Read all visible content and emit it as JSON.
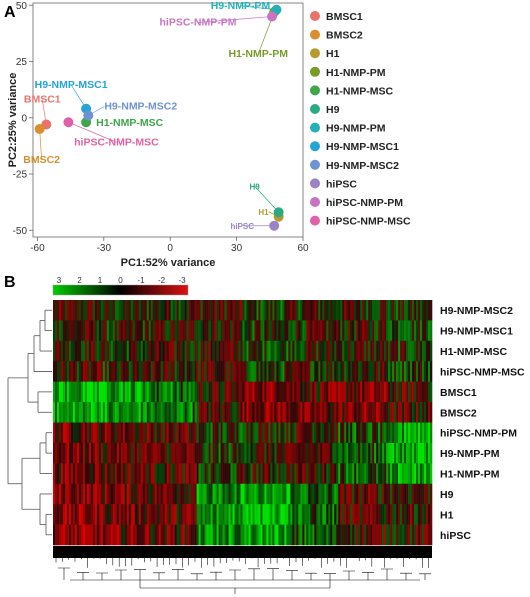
{
  "panel_a_letter": "A",
  "panel_b_letter": "B",
  "colors": {
    "BMSC1": "#e8736b",
    "BMSC2": "#d98e2f",
    "H1": "#b59a2e",
    "H1-NMP-PM": "#7a9b2a",
    "H1-NMP-MSC": "#3fa64a",
    "H9": "#2aaa83",
    "H9-NMP-PM": "#24b0b5",
    "H9-NMP-MSC1": "#25a4d8",
    "H9-NMP-MSC2": "#6e93d3",
    "hiPSC": "#9c83c8",
    "hiPSC-NMP-PM": "#c774c2",
    "hiPSC-NMP-MSC": "#e061a6"
  },
  "chart_data": [
    {
      "type": "scatter",
      "title": "",
      "xlabel": "PC1:52% variance",
      "ylabel": "PC2:25% variance",
      "xlim": [
        -62,
        60
      ],
      "ylim": [
        -53,
        51
      ],
      "xticks": [
        -60,
        -30,
        0,
        30,
        60
      ],
      "yticks": [
        -50,
        -25,
        0,
        25,
        50
      ],
      "grid": false,
      "legend_position": "right",
      "points": [
        {
          "name": "BMSC1",
          "x": -56,
          "y": -3,
          "label": "BMSC1"
        },
        {
          "name": "BMSC2",
          "x": -59,
          "y": -5,
          "label": "BMSC2"
        },
        {
          "name": "H1",
          "x": 49,
          "y": -44,
          "label": "H1"
        },
        {
          "name": "H1-NMP-PM",
          "x": 47,
          "y": 47,
          "label": "H1-NMP-PM"
        },
        {
          "name": "H1-NMP-MSC",
          "x": -38,
          "y": -2,
          "label": "H1-NMP-MSC"
        },
        {
          "name": "H9",
          "x": 49,
          "y": -42,
          "label": "H9"
        },
        {
          "name": "H9-NMP-PM",
          "x": 48,
          "y": 48,
          "label": "H9-NMP-PM"
        },
        {
          "name": "H9-NMP-MSC1",
          "x": -38,
          "y": 4,
          "label": "H9-NMP-MSC1"
        },
        {
          "name": "H9-NMP-MSC2",
          "x": -37,
          "y": 1,
          "label": "H9-NMP-MSC2"
        },
        {
          "name": "hiPSC",
          "x": 47,
          "y": -48,
          "label": "hiPSC"
        },
        {
          "name": "hiPSC-NMP-PM",
          "x": 46,
          "y": 45,
          "label": "hiPSC-NMP-PM"
        },
        {
          "name": "hiPSC-NMP-MSC",
          "x": -46,
          "y": -2,
          "label": "hiPSC-NMP-MSC"
        }
      ],
      "legend": [
        "BMSC1",
        "BMSC2",
        "H1",
        "H1-NMP-PM",
        "H1-NMP-MSC",
        "H9",
        "H9-NMP-PM",
        "H9-NMP-MSC1",
        "H9-NMP-MSC2",
        "hiPSC",
        "hiPSC-NMP-PM",
        "hiPSC-NMP-MSC"
      ]
    },
    {
      "type": "heatmap",
      "title": "",
      "color_scale_ticks": [
        "3",
        "2",
        "1",
        "0",
        "-1",
        "-2",
        "-3"
      ],
      "color_low": "#00cc00",
      "color_mid": "#000000",
      "color_high": "#dd1111",
      "row_labels": [
        "H9-NMP-MSC2",
        "H9-NMP-MSC1",
        "H1-NMP-MSC",
        "hiPSC-NMP-MSC",
        "BMSC1",
        "BMSC2",
        "hiPSC-NMP-PM",
        "H9-NMP-PM",
        "H1-NMP-PM",
        "H9",
        "H1",
        "hiPSC"
      ],
      "row_dendrogram": true,
      "column_dendrogram": true
    }
  ]
}
